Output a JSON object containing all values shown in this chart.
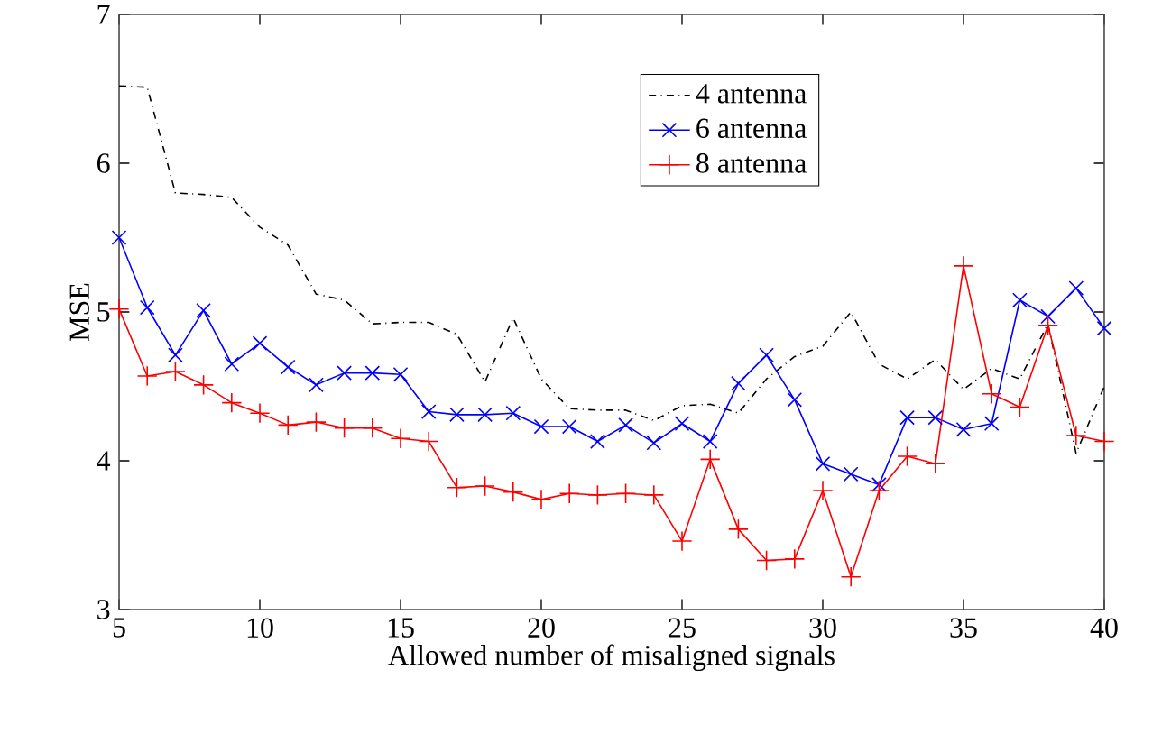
{
  "chart_data": {
    "type": "line",
    "xlabel": "Allowed number of misaligned signals",
    "ylabel": "MSE",
    "x": [
      5,
      6,
      7,
      8,
      9,
      10,
      11,
      12,
      13,
      14,
      15,
      16,
      17,
      18,
      19,
      20,
      21,
      22,
      23,
      24,
      25,
      26,
      27,
      28,
      29,
      30,
      31,
      32,
      33,
      34,
      35,
      36,
      37,
      38,
      39,
      40
    ],
    "series": [
      {
        "name": "4 antenna",
        "color": "#000000",
        "marker": "none",
        "line_style": "dashdot",
        "values": [
          6.52,
          6.51,
          5.8,
          5.79,
          5.77,
          5.57,
          5.45,
          5.12,
          5.08,
          4.92,
          4.93,
          4.93,
          4.85,
          4.53,
          4.96,
          4.55,
          4.35,
          4.34,
          4.34,
          4.27,
          4.37,
          4.38,
          4.32,
          4.55,
          4.7,
          4.77,
          5.0,
          4.65,
          4.55,
          4.68,
          4.48,
          4.62,
          4.55,
          4.92,
          4.05,
          4.5
        ]
      },
      {
        "name": "6 antenna",
        "color": "#0000ff",
        "marker": "cross",
        "line_style": "solid",
        "values": [
          5.5,
          5.03,
          4.71,
          5.01,
          4.65,
          4.79,
          4.63,
          4.51,
          4.59,
          4.59,
          4.58,
          4.33,
          4.31,
          4.31,
          4.32,
          4.23,
          4.23,
          4.13,
          4.24,
          4.12,
          4.25,
          4.13,
          4.52,
          4.71,
          4.41,
          3.98,
          3.91,
          3.84,
          4.29,
          4.29,
          4.21,
          4.25,
          5.08,
          4.97,
          5.16,
          4.89
        ]
      },
      {
        "name": "8 antenna",
        "color": "#ff0000",
        "marker": "plus",
        "line_style": "solid",
        "values": [
          5.02,
          4.57,
          4.6,
          4.51,
          4.39,
          4.32,
          4.24,
          4.26,
          4.22,
          4.22,
          4.15,
          4.13,
          3.82,
          3.83,
          3.79,
          3.74,
          3.78,
          3.77,
          3.78,
          3.77,
          3.46,
          4.01,
          3.54,
          3.33,
          3.34,
          3.8,
          3.22,
          3.8,
          4.03,
          3.98,
          5.31,
          4.45,
          4.36,
          4.91,
          4.17,
          4.13
        ]
      }
    ],
    "xlim": [
      5,
      40
    ],
    "xticks": [
      5,
      10,
      15,
      20,
      25,
      30,
      35,
      40
    ],
    "ylim": [
      3,
      7
    ],
    "yticks": [
      3,
      4,
      5,
      6,
      7
    ],
    "grid": false,
    "legend": "top"
  }
}
